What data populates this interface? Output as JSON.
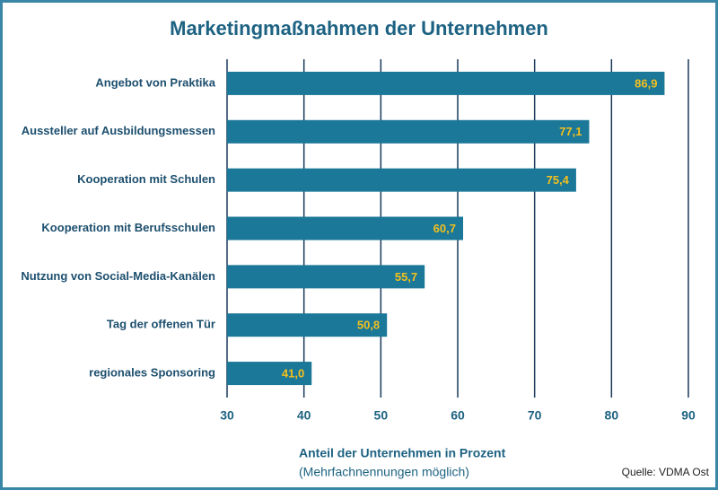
{
  "chart_data": {
    "type": "bar",
    "orientation": "horizontal",
    "title": "Marketingmaßnahmen der Unternehmen",
    "categories": [
      "Angebot von Praktika",
      "Aussteller auf Ausbildungsmessen",
      "Kooperation mit Schulen",
      "Kooperation mit Berufsschulen",
      "Nutzung von Social-Media-Kanälen",
      "Tag der offenen Tür",
      "regionales Sponsoring"
    ],
    "values": [
      86.9,
      77.1,
      75.4,
      60.7,
      55.7,
      50.8,
      41.0
    ],
    "value_labels": [
      "86,9",
      "77,1",
      "75,4",
      "60,7",
      "55,7",
      "50,8",
      "41,0"
    ],
    "color": "#1b7898",
    "value_label_color": "#f2c01e",
    "xlim": [
      30,
      90
    ],
    "xticks": [
      30,
      40,
      50,
      60,
      70,
      80,
      90
    ],
    "grid": true,
    "xlabel": "Anteil der Unternehmen in Prozent",
    "xlabel_note": "(Mehrfachnennungen möglich)",
    "source": "Quelle: VDMA Ost"
  }
}
